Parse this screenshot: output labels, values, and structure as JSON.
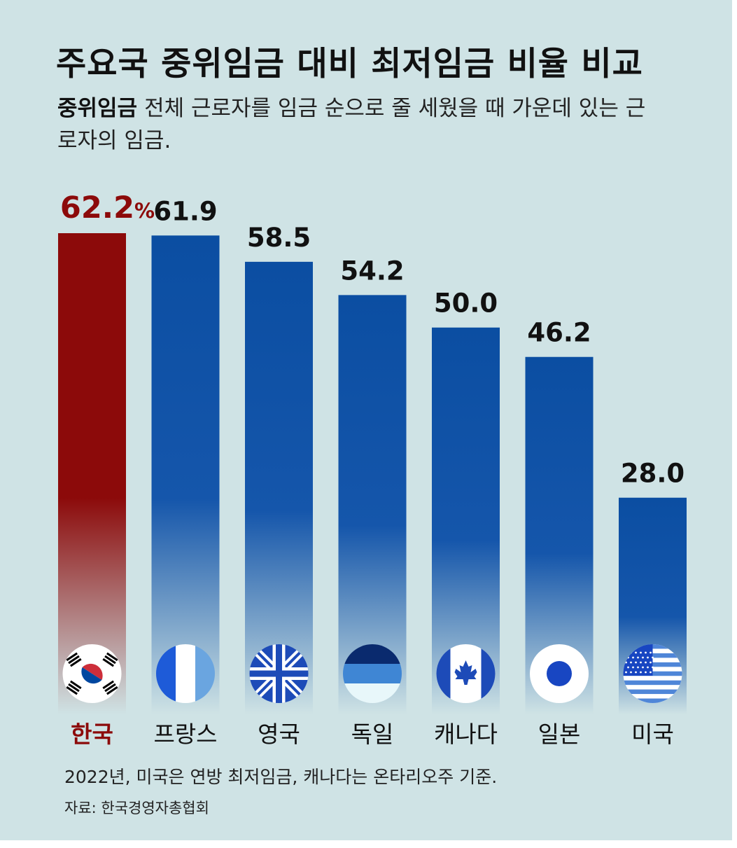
{
  "title": "주요국 중위임금 대비 최저임금 비율 비교",
  "subtitle": {
    "term": "중위임금",
    "definition": "전체 근로자를 임금 순으로 줄 세웠을 때 가운데 있는 근로자의 임금."
  },
  "colors": {
    "highlight": "#8c0a0a",
    "bar": "#0b4ea2",
    "background": "#cfe3e5"
  },
  "chart_data": {
    "type": "bar",
    "unit": "%",
    "ylim": [
      0,
      62.2
    ],
    "categories": [
      "한국",
      "프랑스",
      "영국",
      "독일",
      "캐나다",
      "일본",
      "미국"
    ],
    "values": [
      62.2,
      61.9,
      58.5,
      54.2,
      50.0,
      46.2,
      28.0
    ],
    "value_labels": [
      "62.2",
      "61.9",
      "58.5",
      "54.2",
      "50.0",
      "46.2",
      "28.0"
    ],
    "highlight_index": 0,
    "flag_icons": [
      "south-korea-flag-icon",
      "france-flag-icon",
      "uk-flag-icon",
      "germany-flag-icon",
      "canada-flag-icon",
      "japan-flag-icon",
      "usa-flag-icon"
    ]
  },
  "footnote": "2022년, 미국은 연방 최저임금, 캐나다는 온타리오주 기준.",
  "source": "자료: 한국경영자총협회"
}
